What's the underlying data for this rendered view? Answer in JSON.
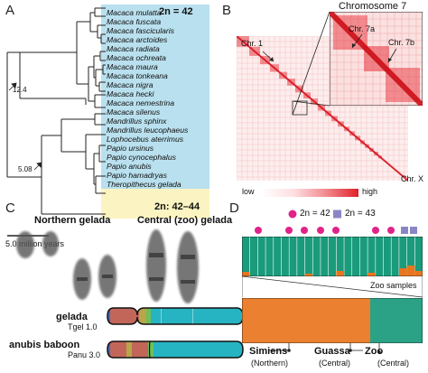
{
  "panels": {
    "a": "A",
    "b": "B",
    "c": "C",
    "d": "D"
  },
  "tree": {
    "species": [
      "Macaca mulatta",
      "Macaca fuscata",
      "Macaca fascicularis",
      "Macaca arctoides",
      "Macaca radiata",
      "Macaca ochreata",
      "Macaca maura",
      "Macaca tonkeana",
      "Macaca nigra",
      "Macaca hecki",
      "Macaca nemestrina",
      "Macaca silenus",
      "Mandrillus sphinx",
      "Mandrillus leucophaeus",
      "Lophocebus aterrimus",
      "Papio ursinus",
      "Papio cynocephalus",
      "Papio anubis",
      "Papio hamadryas",
      "Theropithecus gelada"
    ],
    "label_2n42": "2n = 42",
    "label_2n4244": "2n: 42–44",
    "node_124": "12.4",
    "node_508": "5.08",
    "scale_label": "5.0 million years",
    "colors": {
      "blue_box": "#b9e0ee",
      "yellow_box": "#fbf4c2"
    }
  },
  "hic": {
    "chr1": "Chr. 1",
    "chrx": "Chr. X",
    "inset_title": "Chromosome 7",
    "chr7a": "Chr. 7a",
    "chr7b": "Chr. 7b",
    "legend_low": "low",
    "legend_high": "high",
    "colors": {
      "low": "#fde8e8",
      "high": "#e0202a"
    }
  },
  "karyo": {
    "north_title": "Northern gelada",
    "central_title": "Central (zoo) gelada",
    "gelada_name": "gelada",
    "gelada_ver": "Tgel 1.0",
    "baboon_name": "anubis baboon",
    "baboon_ver": "Panu 3.0"
  },
  "structure": {
    "legend_42": "2n = 42",
    "legend_43": "2n = 43",
    "zoo_samples": "Zoo samples",
    "simiens": "Simiens",
    "simiens_sub": "(Northern)",
    "guassa": "Guassa",
    "guassa_sub": "(Central)",
    "zoo": "Zoo",
    "zoo_sub": "(Central)",
    "colors": {
      "green": "#1a9b7c",
      "orange": "#e8761f",
      "pink": "#e0238a",
      "purple": "#8a86c6"
    }
  }
}
